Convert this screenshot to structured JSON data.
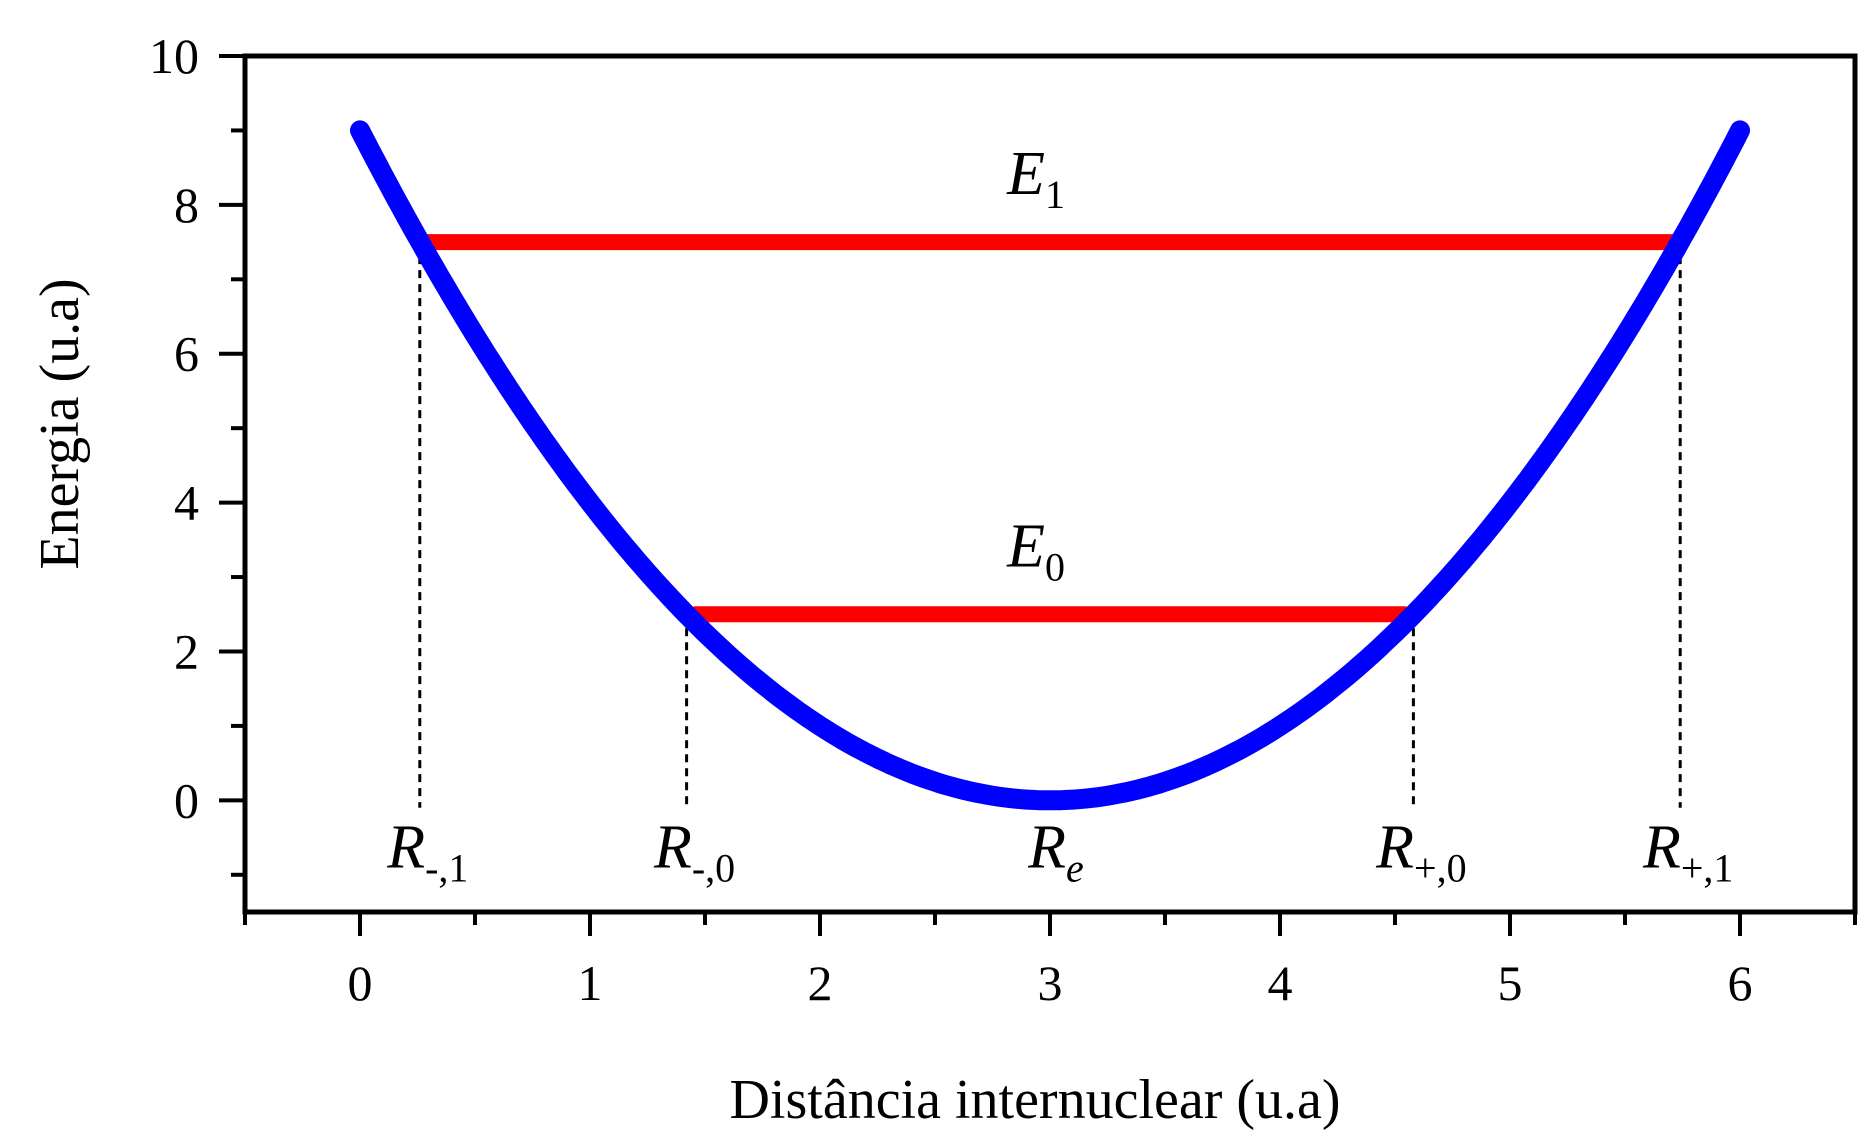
{
  "chart_data": {
    "type": "line",
    "xlabel": "Distância internuclear (u.a)",
    "ylabel": "Energia (u.a)",
    "xlim": [
      -0.5,
      6.5
    ],
    "ylim": [
      -1.5,
      10
    ],
    "xticks": [
      0,
      1,
      2,
      3,
      4,
      5,
      6
    ],
    "xtick_labels": [
      "0",
      "1",
      "2",
      "3",
      "4",
      "5",
      "6"
    ],
    "yticks": [
      0,
      2,
      4,
      6,
      8,
      10
    ],
    "ytick_labels": [
      "0",
      "2",
      "4",
      "6",
      "8",
      "10"
    ],
    "grid": false,
    "colors": {
      "curve": "#0000ff",
      "levels": "#ff0000",
      "axes": "#000000"
    },
    "series": [
      {
        "name": "potential",
        "type": "parabola",
        "color": "#0000ff",
        "x_range": [
          0,
          6
        ],
        "vertex": [
          3,
          0
        ],
        "curvature": 1
      }
    ],
    "levels": [
      {
        "name": "E0",
        "label": "E",
        "sub": "0",
        "energy": 2.5,
        "x_left": 1.45,
        "x_right": 4.55
      },
      {
        "name": "E1",
        "label": "E",
        "sub": "1",
        "energy": 7.5,
        "x_left": 0.28,
        "x_right": 5.72
      }
    ],
    "turning_points": [
      {
        "name": "r-minus-1",
        "label": "R",
        "sub": "-,1",
        "x": 0.26,
        "y_top": 7.5
      },
      {
        "name": "r-minus-0",
        "label": "R",
        "sub": "-,0",
        "x": 1.42,
        "y_top": 2.5
      },
      {
        "name": "r-plus-0",
        "label": "R",
        "sub": "+,0",
        "x": 4.58,
        "y_top": 2.5
      },
      {
        "name": "r-plus-1",
        "label": "R",
        "sub": "+,1",
        "x": 5.74,
        "y_top": 7.5
      }
    ],
    "equilibrium": {
      "name": "r-e",
      "label": "R",
      "sub": "e",
      "x": 3
    }
  }
}
